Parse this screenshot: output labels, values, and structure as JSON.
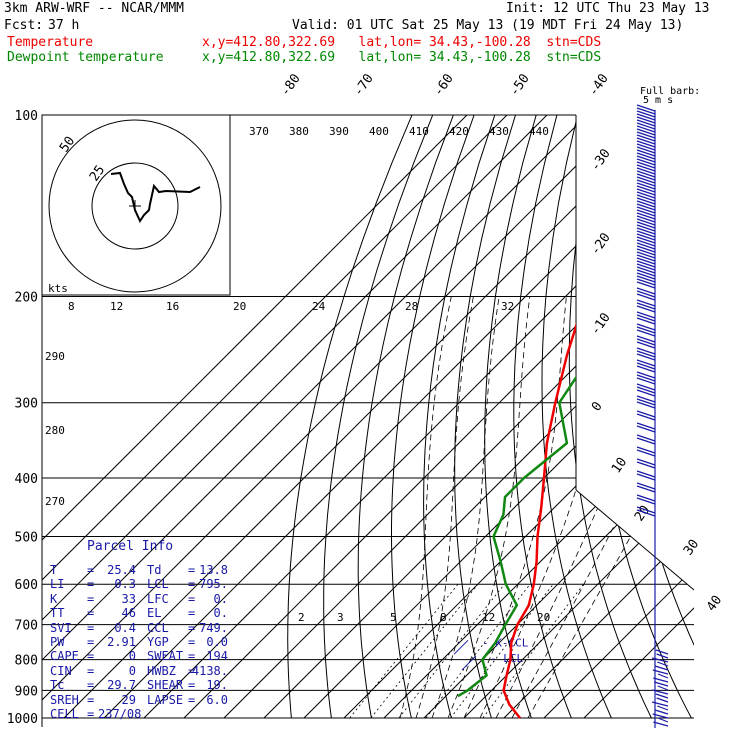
{
  "header": {
    "model": "3km ARW-WRF -- NCAR/MMM",
    "init": "Init: 12 UTC Thu 23 May 13",
    "fcst_label": "Fcst:",
    "fcst_value": "37 h",
    "valid": "Valid: 01 UTC Sat 25 May 13 (19 MDT Fri 24 May 13)",
    "temp_label": "Temperature",
    "temp_info": "x,y=412.80,322.69   lat,lon= 34.43,-100.28  stn=CDS",
    "dew_label": "Dewpoint temperature",
    "dew_info": "x,y=412.80,322.69   lat,lon= 34.43,-100.28  stn=CDS"
  },
  "colors": {
    "temperature": "#ee0000",
    "dewpoint": "#118811",
    "text": "#000000",
    "parcel_text": "#1a1aa8",
    "wind": "#1a1aa8",
    "grid": "#000000",
    "mixing_ratio": "#000000"
  },
  "wind_legend": {
    "line1": "Full barb:",
    "line2": "5 m s"
  },
  "hodograph": {
    "units": "kts",
    "ring_labels": [
      "25",
      "50"
    ]
  },
  "chart_data": {
    "type": "line",
    "pressure_axis": {
      "levels": [
        100,
        200,
        300,
        400,
        500,
        600,
        700,
        800,
        900,
        1000
      ],
      "scale": "log"
    },
    "isotherm_labels": [
      "-80",
      "-70",
      "-60",
      "-50",
      "-40",
      "-30",
      "-20",
      "-10",
      "0",
      "10",
      "20",
      "30",
      "40"
    ],
    "theta_labels": [
      "370",
      "380",
      "390",
      "400",
      "410",
      "420",
      "430",
      "440"
    ],
    "theta_labels_left": [
      "290",
      "280",
      "270"
    ],
    "kts_scale_labels": [
      "8",
      "12",
      "16",
      "20",
      "24",
      "28",
      "32"
    ],
    "mixing_ratio_labels": [
      "2",
      "3",
      "5",
      "8",
      "12",
      "20"
    ],
    "series": [
      {
        "name": "Temperature",
        "p": [
          1000,
          950,
          900,
          850,
          800,
          750,
          700,
          650,
          600,
          550,
          500,
          450,
          400,
          350,
          300,
          250,
          200,
          175,
          150,
          140,
          125,
          110,
          100
        ],
        "values": [
          34,
          28,
          23,
          20,
          17,
          13,
          10,
          8,
          4,
          -1,
          -7,
          -13,
          -20,
          -28,
          -36,
          -45,
          -55,
          -61,
          -63,
          -60,
          -55,
          -47,
          -43
        ]
      },
      {
        "name": "Dewpoint temperature",
        "p": [
          920,
          900,
          850,
          800,
          750,
          700,
          650,
          600,
          550,
          500,
          460,
          430,
          400,
          350,
          300,
          250,
          200,
          175,
          150,
          125,
          100
        ],
        "values": [
          13,
          14,
          15,
          10,
          9,
          7,
          5,
          -3,
          -10,
          -18,
          -21,
          -25,
          -25,
          -23,
          -35,
          -39,
          -49,
          -57,
          -63,
          -69,
          -74
        ]
      }
    ],
    "level_annotations": [
      {
        "label": "K-CCL",
        "p": 749
      },
      {
        "label": "LCL",
        "p": 795
      }
    ]
  },
  "parcel_info": {
    "title": "Parcel Info",
    "rows": [
      {
        "k1": "T",
        "v1": "25.4",
        "k2": "Td",
        "v2": "13.8"
      },
      {
        "k1": "LI",
        "v1": "0.3",
        "k2": "LCL",
        "v2": "795."
      },
      {
        "k1": "K",
        "v1": "33",
        "k2": "LFC",
        "v2": "0."
      },
      {
        "k1": "TT",
        "v1": "46",
        "k2": "EL",
        "v2": "0."
      },
      {
        "k1": "SVI",
        "v1": "0.4",
        "k2": "CCL",
        "v2": "749."
      },
      {
        "k1": "PW",
        "v1": "2.91",
        "k2": "YGP",
        "v2": "0.0"
      },
      {
        "k1": "CAPE",
        "v1": "0",
        "k2": "SWEAT",
        "v2": "194"
      },
      {
        "k1": "CIN",
        "v1": "0",
        "k2": "HWBZ",
        "v2": "4138."
      },
      {
        "k1": "Tc",
        "v1": "29.7",
        "k2": "SHEAR",
        "v2": "19."
      },
      {
        "k1": "SREH",
        "v1": "29",
        "k2": "LAPSE",
        "v2": "6.0"
      }
    ],
    "cell": {
      "key": "CELL",
      "value": "237/08"
    }
  }
}
